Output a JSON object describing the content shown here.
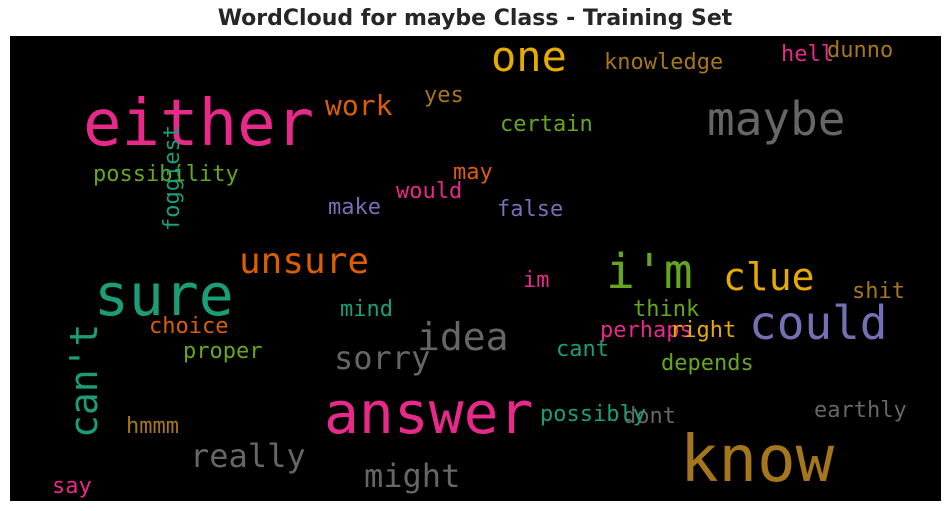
{
  "title": "WordCloud for maybe Class - Training Set",
  "colors": {
    "background": "#000000",
    "title": "#262626",
    "pink": "#e7298a",
    "teal": "#1b9e77",
    "orange": "#d95f02",
    "purple": "#7570b3",
    "green": "#66a61e",
    "gold": "#e6ab02",
    "brown": "#a6761d",
    "gray": "#666666"
  },
  "words": [
    "either",
    "know",
    "answer",
    "sure",
    "i'm",
    "maybe",
    "could",
    "one",
    "idea",
    "can't",
    "clue",
    "unsure",
    "might",
    "really",
    "sorry",
    "work",
    "possibility",
    "certain",
    "knowledge",
    "dont",
    "possibly",
    "dunno",
    "hell",
    "yes",
    "may",
    "would",
    "make",
    "false",
    "foggiest",
    "im",
    "shit",
    "think",
    "mind",
    "choice",
    "perhaps",
    "right",
    "cant",
    "proper",
    "depends",
    "earthly",
    "hmmm",
    "say",
    "true"
  ]
}
